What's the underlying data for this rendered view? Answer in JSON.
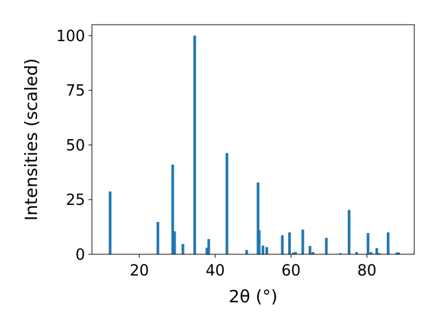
{
  "chart_data": {
    "type": "bar",
    "title": "",
    "xlabel": "2θ (°)",
    "ylabel": "Intensities (scaled)",
    "xlim": [
      7.5,
      92.5
    ],
    "ylim": [
      0,
      105
    ],
    "xticks": [
      20,
      40,
      60,
      80
    ],
    "yticks": [
      0,
      25,
      50,
      75,
      100
    ],
    "grid": false,
    "bar_color": "#1f77b4",
    "bar_width": 0.7,
    "x": [
      12.3,
      24.9,
      28.8,
      29.3,
      31.5,
      34.6,
      37.8,
      38.3,
      43.1,
      48.3,
      51.3,
      51.6,
      52.6,
      53.6,
      57.7,
      59.6,
      60.6,
      61.2,
      63.1,
      65.0,
      65.8,
      69.3,
      73.0,
      75.3,
      77.3,
      80.3,
      81.1,
      82.6,
      83.3,
      85.6,
      87.9,
      88.4
    ],
    "values": [
      28.7,
      14.8,
      41.0,
      10.5,
      4.7,
      100.0,
      3.0,
      7.0,
      46.3,
      2.0,
      32.8,
      11.0,
      4.0,
      3.3,
      8.7,
      10.0,
      0.8,
      1.0,
      11.3,
      3.8,
      1.0,
      7.5,
      0.5,
      20.3,
      1.0,
      9.7,
      1.0,
      2.8,
      0.5,
      10.0,
      0.8,
      0.8
    ]
  }
}
